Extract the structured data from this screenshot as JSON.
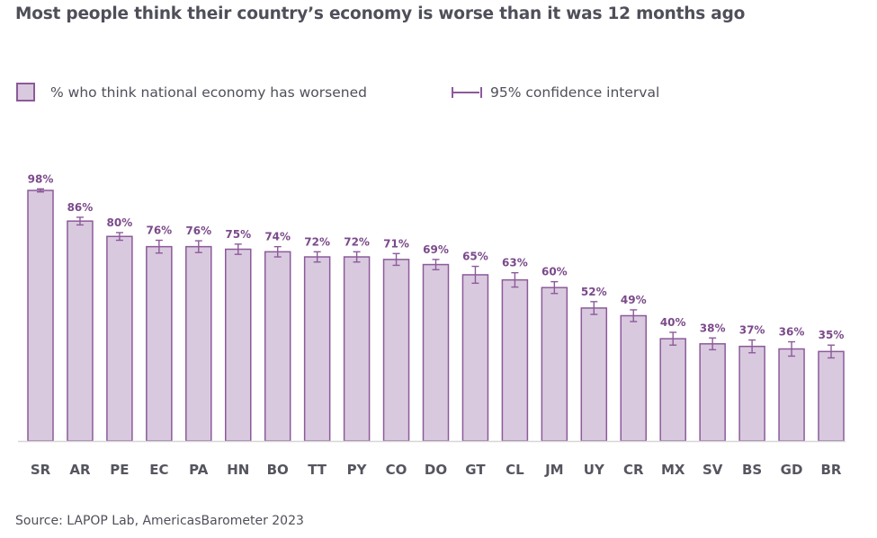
{
  "colors": {
    "bar_fill": "#d9c9df",
    "bar_stroke": "#8c5a9a",
    "label": "#7b4a8a",
    "axis": "#d6d6d6",
    "text": "#4f4f5a"
  },
  "chart_data": {
    "type": "bar",
    "title": "Most people think their country’s economy is worse than it was 12 months ago",
    "xlabel": "",
    "ylabel": "",
    "ylim": [
      0,
      100
    ],
    "grid": false,
    "legend": {
      "placement": "top-left",
      "entries": [
        {
          "name": "% who think national economy has worsened",
          "marker": "bar-swatch"
        },
        {
          "name": "95% confidence interval",
          "marker": "error-bar"
        }
      ]
    },
    "categories": [
      "SR",
      "AR",
      "PE",
      "EC",
      "PA",
      "HN",
      "BO",
      "TT",
      "PY",
      "CO",
      "DO",
      "GT",
      "CL",
      "JM",
      "UY",
      "CR",
      "MX",
      "SV",
      "BS",
      "GD",
      "BR"
    ],
    "series": [
      {
        "name": "% who think national economy has worsened",
        "values": [
          98,
          86,
          80,
          76,
          76,
          75,
          74,
          72,
          72,
          71,
          69,
          65,
          63,
          60,
          52,
          49,
          40,
          38,
          37,
          36,
          35
        ],
        "value_labels": [
          "98%",
          "86%",
          "80%",
          "76%",
          "76%",
          "75%",
          "74%",
          "72%",
          "72%",
          "71%",
          "69%",
          "65%",
          "63%",
          "60%",
          "52%",
          "49%",
          "40%",
          "38%",
          "37%",
          "36%",
          "35%"
        ],
        "ci_half_width": [
          0.6,
          1.5,
          1.5,
          2.5,
          2.3,
          2.0,
          2.0,
          2.0,
          2.0,
          2.3,
          2.0,
          3.3,
          2.8,
          2.3,
          2.5,
          2.3,
          2.5,
          2.3,
          2.5,
          2.8,
          2.5
        ]
      }
    ],
    "source": "Source: LAPOP Lab, AmericasBarometer 2023"
  }
}
